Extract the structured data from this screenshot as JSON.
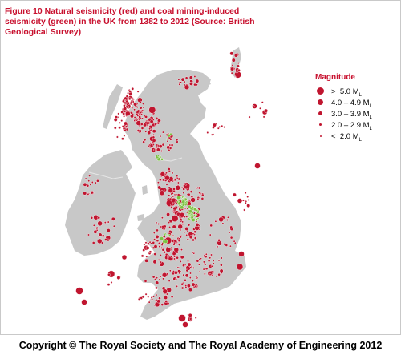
{
  "figure": {
    "title": "Figure 10 Natural seismicity (red) and coal mining-induced seismicity (green) in the UK from 1382 to 2012 (Source: British Geological Survey)"
  },
  "legend": {
    "title": "Magnitude",
    "items": [
      {
        "symbol": ">",
        "range": "5.0",
        "unit": "M",
        "sub": "L"
      },
      {
        "symbol": "",
        "range": "4.0 – 4.9",
        "unit": "M",
        "sub": "L"
      },
      {
        "symbol": "",
        "range": "3.0 – 3.9",
        "unit": "M",
        "sub": "L"
      },
      {
        "symbol": "",
        "range": "2.0 – 2.9",
        "unit": "M",
        "sub": "L"
      },
      {
        "symbol": "<",
        "range": "2.0",
        "unit": "M",
        "sub": "L"
      }
    ]
  },
  "colors": {
    "natural": "#c0152f",
    "mining": "#7cc242",
    "land": "#c8c8c8",
    "title": "#c8102e"
  },
  "footer": {
    "copyright": "Copyright © The Royal Society and The Royal Academy of Engineering 2012"
  }
}
